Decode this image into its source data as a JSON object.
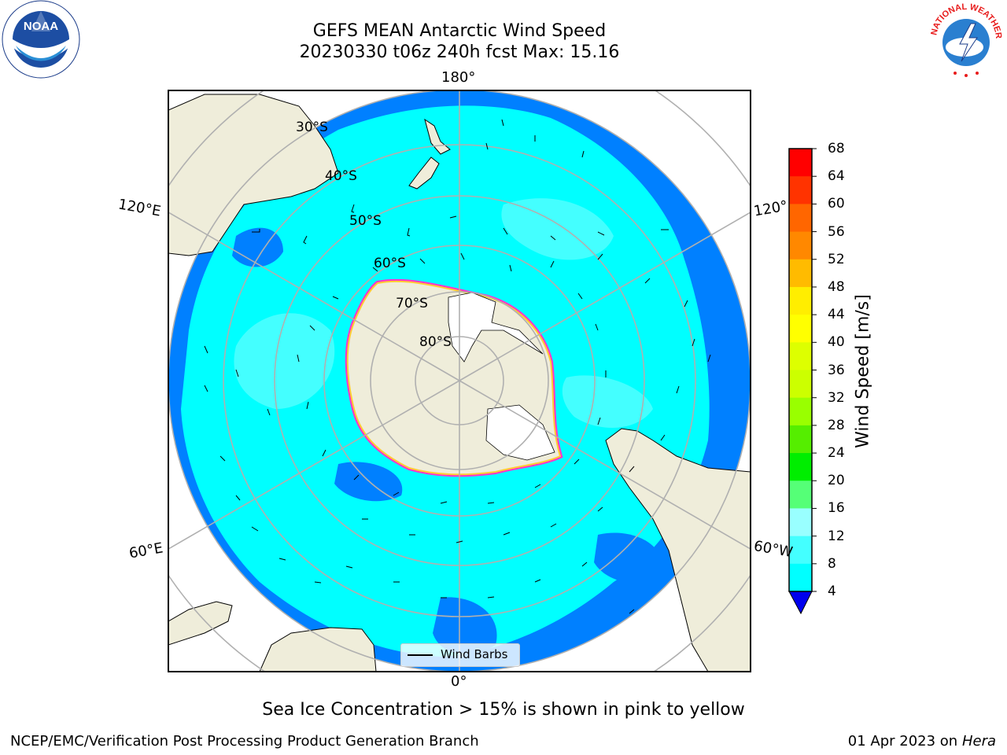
{
  "title": {
    "line1": "GEFS MEAN Antarctic Wind Speed",
    "line2": "20230330 t06z 240h fcst   Max: 15.16"
  },
  "map": {
    "meridian_labels": {
      "top": "180°",
      "bottom": "0°",
      "left_upper": "120°E",
      "left_lower": "60°E",
      "right_upper": "120°",
      "right_lower": "60°W"
    },
    "latitude_labels": [
      "30°S",
      "40°S",
      "50°S",
      "60°S",
      "70°S",
      "80°S"
    ],
    "legend_label": "Wind Barbs",
    "colors": {
      "land": "#efedda",
      "ocean_4_8": "#0080ff",
      "ocean_8_12": "#00ffff",
      "ocean_12_16": "#40ffff",
      "ice_edge": "#ff33cc",
      "ice_inner": "#ffcc33",
      "grid": "#b0b0b0"
    }
  },
  "colorbar": {
    "label": "Wind Speed [m/s]",
    "ticks": [
      "68",
      "64",
      "60",
      "56",
      "52",
      "48",
      "44",
      "40",
      "36",
      "32",
      "28",
      "24",
      "20",
      "16",
      "12",
      "8",
      "4"
    ],
    "colors": [
      "#ff0000",
      "#ff3300",
      "#ff6600",
      "#ff8800",
      "#ffbb00",
      "#ffee00",
      "#ffff00",
      "#ddff00",
      "#ccff00",
      "#99ff00",
      "#55ee00",
      "#00ee00",
      "#55ff77",
      "#99ffff",
      "#44ffff",
      "#00ffff",
      "#0077ff"
    ],
    "under_color": "#0000ee"
  },
  "caption": "Sea Ice Concentration > 15% is shown in pink to yellow",
  "footer": {
    "left": "NCEP/EMC/Verification Post Processing Product Generation Branch",
    "right_date": "01 Apr 2023 on ",
    "right_machine": "Hera"
  },
  "logos": {
    "left": "NOAA",
    "right": "NATIONAL WEATHER SERVICE"
  }
}
